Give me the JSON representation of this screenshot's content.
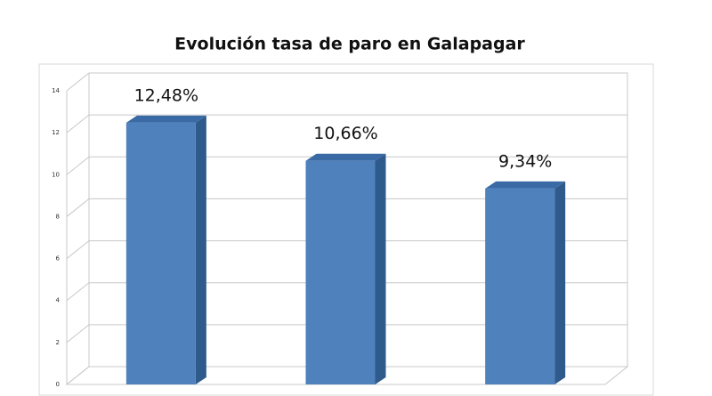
{
  "chart_data": {
    "type": "bar3d",
    "title": "Evolución tasa de paro en Galapagar",
    "categories": [
      null,
      null,
      null
    ],
    "values": [
      12.48,
      10.66,
      9.34
    ],
    "value_labels": [
      "12,48%",
      "10,66%",
      "9,34%"
    ],
    "color": "#4f81bd",
    "ylim": [
      0,
      14
    ],
    "yticks": [
      0,
      2,
      4,
      6,
      8,
      10,
      12,
      14
    ],
    "grid": true
  }
}
